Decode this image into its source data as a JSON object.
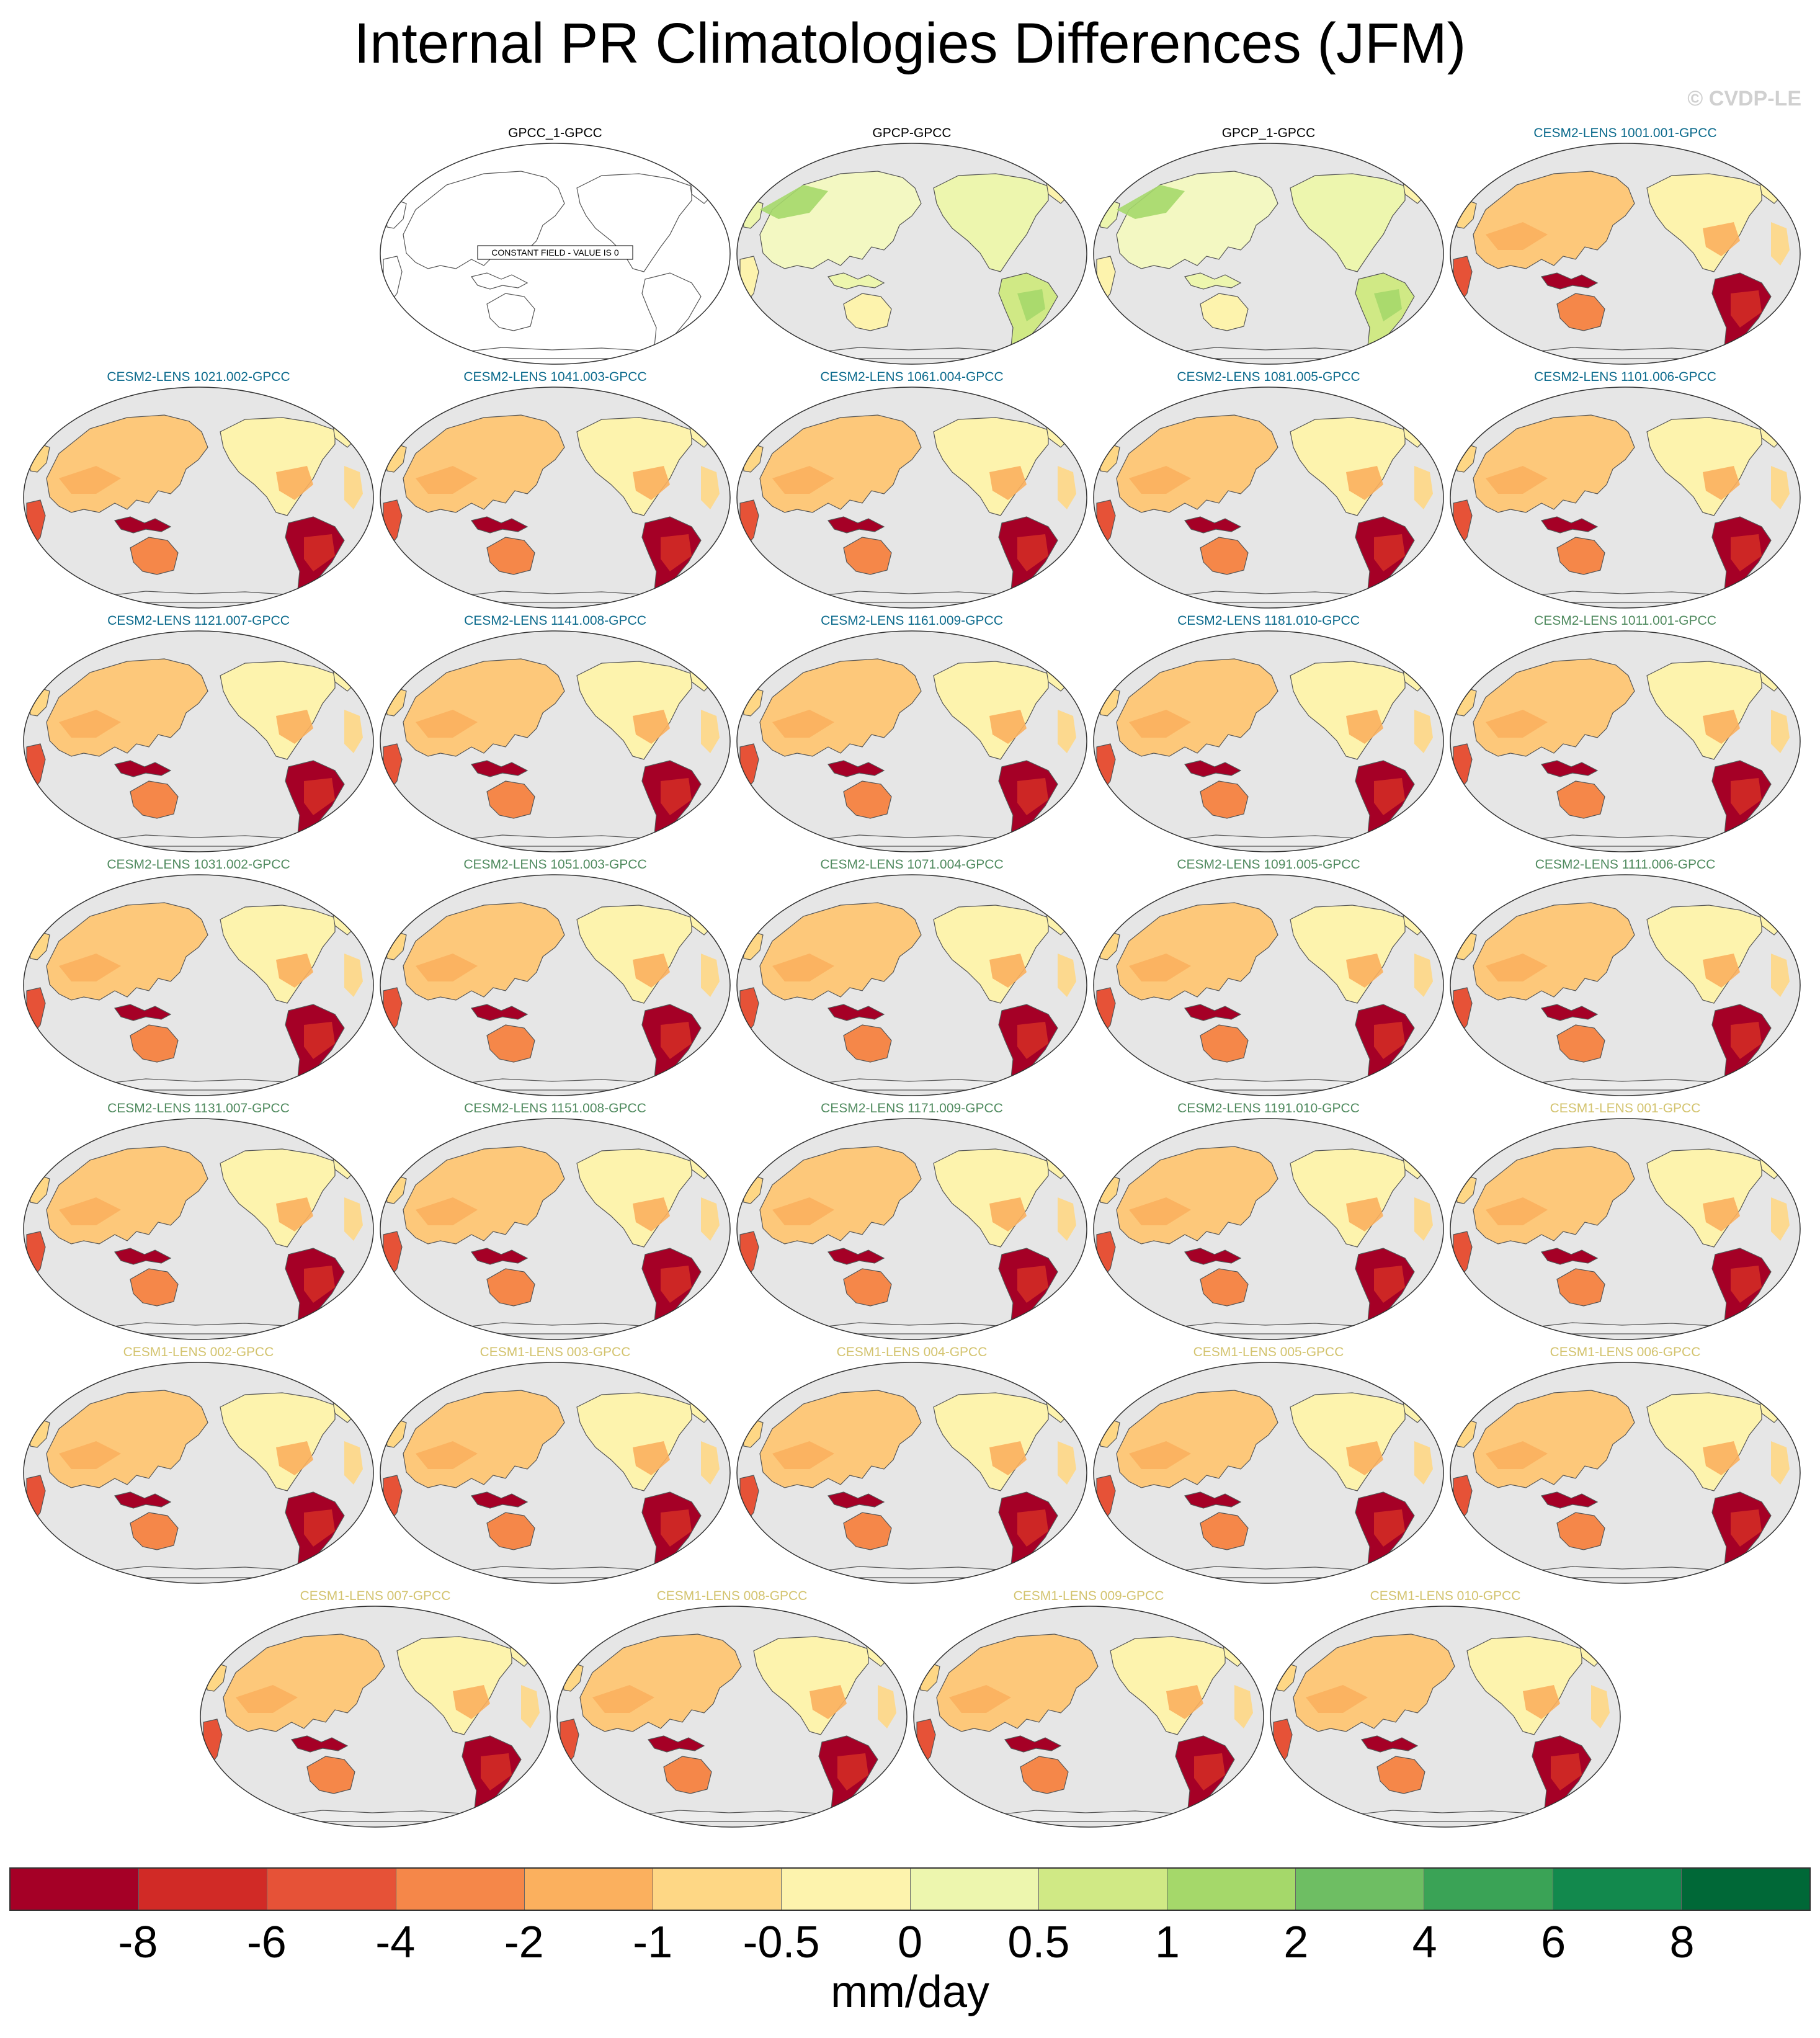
{
  "title": "Internal PR Climatologies Differences (JFM)",
  "copyright": "© CVDP-LE",
  "constant_field_note": "CONSTANT FIELD - VALUE IS 0",
  "group_colors": {
    "obs": "#000000",
    "cesm2_lens_a": "#0b6a8c",
    "cesm2_lens_b": "#4f8a5e",
    "cesm1_lens": "#d3c36e"
  },
  "panels": [
    {
      "title": "GPCC_1-GPCC",
      "group": "obs",
      "style": "constant"
    },
    {
      "title": "GPCP-GPCC",
      "group": "obs",
      "style": "light"
    },
    {
      "title": "GPCP_1-GPCC",
      "group": "obs",
      "style": "light"
    },
    {
      "title": "CESM2-LENS 1001.001-GPCC",
      "group": "cesm2_lens_a",
      "style": "bias"
    },
    {
      "title": "CESM2-LENS 1021.002-GPCC",
      "group": "cesm2_lens_a",
      "style": "bias"
    },
    {
      "title": "CESM2-LENS 1041.003-GPCC",
      "group": "cesm2_lens_a",
      "style": "bias"
    },
    {
      "title": "CESM2-LENS 1061.004-GPCC",
      "group": "cesm2_lens_a",
      "style": "bias"
    },
    {
      "title": "CESM2-LENS 1081.005-GPCC",
      "group": "cesm2_lens_a",
      "style": "bias"
    },
    {
      "title": "CESM2-LENS 1101.006-GPCC",
      "group": "cesm2_lens_a",
      "style": "bias"
    },
    {
      "title": "CESM2-LENS 1121.007-GPCC",
      "group": "cesm2_lens_a",
      "style": "bias"
    },
    {
      "title": "CESM2-LENS 1141.008-GPCC",
      "group": "cesm2_lens_a",
      "style": "bias"
    },
    {
      "title": "CESM2-LENS 1161.009-GPCC",
      "group": "cesm2_lens_a",
      "style": "bias"
    },
    {
      "title": "CESM2-LENS 1181.010-GPCC",
      "group": "cesm2_lens_a",
      "style": "bias"
    },
    {
      "title": "CESM2-LENS 1011.001-GPCC",
      "group": "cesm2_lens_b",
      "style": "bias"
    },
    {
      "title": "CESM2-LENS 1031.002-GPCC",
      "group": "cesm2_lens_b",
      "style": "bias"
    },
    {
      "title": "CESM2-LENS 1051.003-GPCC",
      "group": "cesm2_lens_b",
      "style": "bias"
    },
    {
      "title": "CESM2-LENS 1071.004-GPCC",
      "group": "cesm2_lens_b",
      "style": "bias"
    },
    {
      "title": "CESM2-LENS 1091.005-GPCC",
      "group": "cesm2_lens_b",
      "style": "bias"
    },
    {
      "title": "CESM2-LENS 1111.006-GPCC",
      "group": "cesm2_lens_b",
      "style": "bias"
    },
    {
      "title": "CESM2-LENS 1131.007-GPCC",
      "group": "cesm2_lens_b",
      "style": "bias"
    },
    {
      "title": "CESM2-LENS 1151.008-GPCC",
      "group": "cesm2_lens_b",
      "style": "bias"
    },
    {
      "title": "CESM2-LENS 1171.009-GPCC",
      "group": "cesm2_lens_b",
      "style": "bias"
    },
    {
      "title": "CESM2-LENS 1191.010-GPCC",
      "group": "cesm2_lens_b",
      "style": "bias"
    },
    {
      "title": "CESM1-LENS 001-GPCC",
      "group": "cesm1_lens",
      "style": "bias"
    },
    {
      "title": "CESM1-LENS 002-GPCC",
      "group": "cesm1_lens",
      "style": "bias"
    },
    {
      "title": "CESM1-LENS 003-GPCC",
      "group": "cesm1_lens",
      "style": "bias"
    },
    {
      "title": "CESM1-LENS 004-GPCC",
      "group": "cesm1_lens",
      "style": "bias"
    },
    {
      "title": "CESM1-LENS 005-GPCC",
      "group": "cesm1_lens",
      "style": "bias"
    },
    {
      "title": "CESM1-LENS 006-GPCC",
      "group": "cesm1_lens",
      "style": "bias"
    },
    {
      "title": "CESM1-LENS 007-GPCC",
      "group": "cesm1_lens",
      "style": "bias"
    },
    {
      "title": "CESM1-LENS 008-GPCC",
      "group": "cesm1_lens",
      "style": "bias"
    },
    {
      "title": "CESM1-LENS 009-GPCC",
      "group": "cesm1_lens",
      "style": "bias"
    },
    {
      "title": "CESM1-LENS 010-GPCC",
      "group": "cesm1_lens",
      "style": "bias"
    }
  ],
  "colorbar": {
    "units": "mm/day",
    "tick_labels": [
      "-8",
      "-6",
      "-4",
      "-2",
      "-1",
      "-0.5",
      "0",
      "0.5",
      "1",
      "2",
      "4",
      "6",
      "8"
    ],
    "colors": [
      "#a50026",
      "#d12a26",
      "#e65237",
      "#f58749",
      "#fbb05e",
      "#fed785",
      "#fdf3ad",
      "#edf6ae",
      "#d0e985",
      "#a5d86a",
      "#6ebe63",
      "#3aa356",
      "#12894d",
      "#006837"
    ]
  }
}
